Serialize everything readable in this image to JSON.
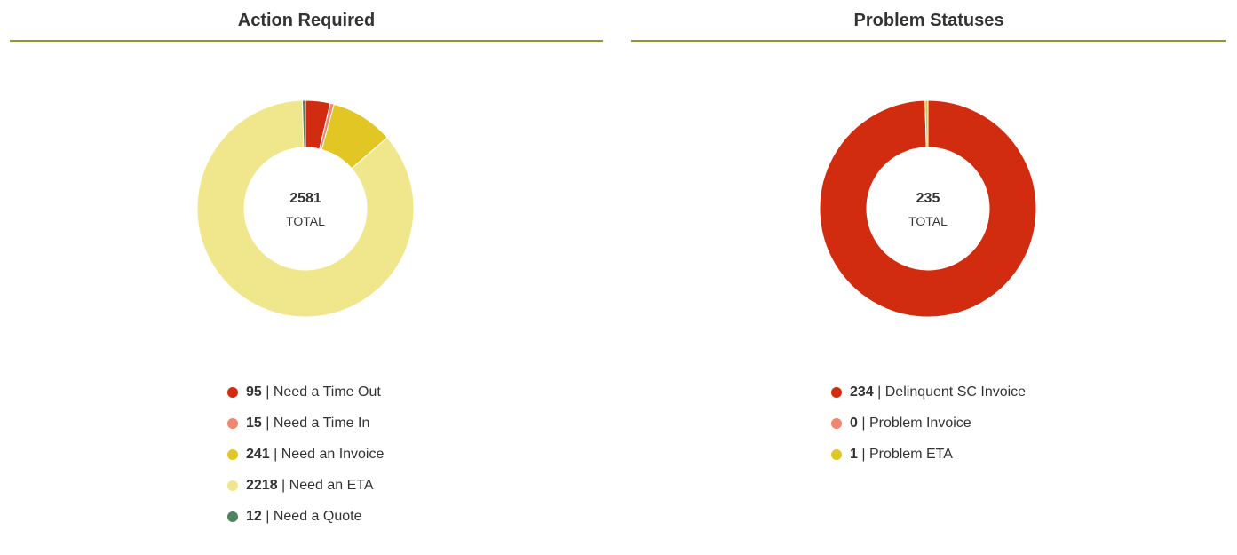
{
  "chart_data": [
    {
      "type": "pie",
      "title": "Action Required",
      "center_value": "2581",
      "center_label": "TOTAL",
      "series": [
        {
          "name": "Need a Time Out",
          "value": 95,
          "color": "#d22c10"
        },
        {
          "name": "Need a Time In",
          "value": 15,
          "color": "#f0866e"
        },
        {
          "name": "Need an Invoice",
          "value": 241,
          "color": "#e2c624"
        },
        {
          "name": "Need an ETA",
          "value": 2218,
          "color": "#f0e68c"
        },
        {
          "name": "Need a Quote",
          "value": 12,
          "color": "#4e8560"
        }
      ],
      "legend": "bottom"
    },
    {
      "type": "pie",
      "title": "Problem Statuses",
      "center_value": "235",
      "center_label": "TOTAL",
      "series": [
        {
          "name": "Delinquent SC Invoice",
          "value": 234,
          "color": "#d22c10"
        },
        {
          "name": "Problem Invoice",
          "value": 0,
          "color": "#f0866e"
        },
        {
          "name": "Problem ETA",
          "value": 1,
          "color": "#e2c624"
        }
      ],
      "legend": "bottom"
    }
  ]
}
